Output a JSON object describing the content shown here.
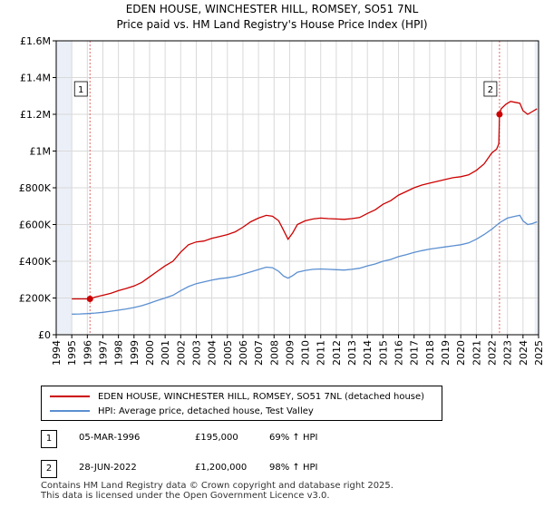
{
  "title_line1": "EDEN HOUSE, WINCHESTER HILL, ROMSEY, SO51 7NL",
  "title_line2": "Price paid vs. HM Land Registry's House Price Index (HPI)",
  "colors": {
    "property": "#cc0000",
    "hpi": "#5b8fd1",
    "sale_marker": "#cc0000",
    "vline": "#e06666",
    "shade": "#ebf0f8",
    "grid": "#d9d9d9"
  },
  "chart_data": {
    "type": "line",
    "xlabel": "",
    "ylabel": "",
    "xlim": [
      1994.0,
      2025.0
    ],
    "ylim": [
      0,
      1600000
    ],
    "grid": true,
    "x_ticks": [
      "1994",
      "1995",
      "1996",
      "1997",
      "1998",
      "1999",
      "2000",
      "2001",
      "2002",
      "2003",
      "2004",
      "2005",
      "2006",
      "2007",
      "2008",
      "2009",
      "2010",
      "2011",
      "2012",
      "2013",
      "2014",
      "2015",
      "2016",
      "2017",
      "2018",
      "2019",
      "2020",
      "2021",
      "2022",
      "2023",
      "2024",
      "2025"
    ],
    "y_ticks": [
      {
        "value": 0,
        "label": "£0"
      },
      {
        "value": 200000,
        "label": "£200K"
      },
      {
        "value": 400000,
        "label": "£400K"
      },
      {
        "value": 600000,
        "label": "£600K"
      },
      {
        "value": 800000,
        "label": "£800K"
      },
      {
        "value": 1000000,
        "label": "£1M"
      },
      {
        "value": 1200000,
        "label": "£1.2M"
      },
      {
        "value": 1400000,
        "label": "£1.4M"
      },
      {
        "value": 1600000,
        "label": "£1.6M"
      }
    ],
    "shaded_ranges": [
      [
        1994.0,
        1995.0
      ],
      [
        2024.75,
        2025.0
      ]
    ],
    "series": [
      {
        "name": "EDEN HOUSE, WINCHESTER HILL, ROMSEY, SO51 7NL (detached house)",
        "color": "#cc0000",
        "x": [
          1995.0,
          1995.5,
          1996.17,
          1996.5,
          1997.0,
          1997.5,
          1998.0,
          1998.5,
          1999.0,
          1999.5,
          2000.0,
          2000.5,
          2001.0,
          2001.5,
          2002.0,
          2002.5,
          2003.0,
          2003.5,
          2004.0,
          2004.5,
          2005.0,
          2005.5,
          2006.0,
          2006.5,
          2007.0,
          2007.5,
          2007.9,
          2008.3,
          2008.6,
          2008.9,
          2009.2,
          2009.5,
          2010.0,
          2010.5,
          2011.0,
          2011.5,
          2012.0,
          2012.5,
          2013.0,
          2013.5,
          2014.0,
          2014.5,
          2015.0,
          2015.5,
          2016.0,
          2016.5,
          2017.0,
          2017.5,
          2018.0,
          2018.5,
          2019.0,
          2019.5,
          2020.0,
          2020.5,
          2021.0,
          2021.5,
          2022.0,
          2022.3,
          2022.45,
          2022.49,
          2022.6,
          2022.9,
          2023.2,
          2023.5,
          2023.8,
          2024.0,
          2024.3,
          2024.6,
          2024.9
        ],
        "values": [
          195000,
          195000,
          195000,
          205000,
          215000,
          225000,
          240000,
          252000,
          265000,
          285000,
          315000,
          345000,
          375000,
          400000,
          450000,
          490000,
          505000,
          510000,
          525000,
          535000,
          545000,
          560000,
          585000,
          615000,
          635000,
          650000,
          645000,
          620000,
          570000,
          520000,
          555000,
          600000,
          620000,
          630000,
          635000,
          632000,
          630000,
          628000,
          632000,
          638000,
          660000,
          680000,
          710000,
          730000,
          760000,
          780000,
          800000,
          815000,
          825000,
          835000,
          845000,
          855000,
          860000,
          870000,
          895000,
          930000,
          990000,
          1010000,
          1040000,
          1200000,
          1230000,
          1255000,
          1270000,
          1265000,
          1260000,
          1220000,
          1200000,
          1215000,
          1230000
        ]
      },
      {
        "name": "HPI: Average price, detached house, Test Valley",
        "color": "#5b8fd1",
        "x": [
          1995.0,
          1995.5,
          1996.0,
          1996.5,
          1997.0,
          1997.5,
          1998.0,
          1998.5,
          1999.0,
          1999.5,
          2000.0,
          2000.5,
          2001.0,
          2001.5,
          2002.0,
          2002.5,
          2003.0,
          2003.5,
          2004.0,
          2004.5,
          2005.0,
          2005.5,
          2006.0,
          2006.5,
          2007.0,
          2007.5,
          2007.9,
          2008.3,
          2008.6,
          2008.9,
          2009.2,
          2009.5,
          2010.0,
          2010.5,
          2011.0,
          2011.5,
          2012.0,
          2012.5,
          2013.0,
          2013.5,
          2014.0,
          2014.5,
          2015.0,
          2015.5,
          2016.0,
          2016.5,
          2017.0,
          2017.5,
          2018.0,
          2018.5,
          2019.0,
          2019.5,
          2020.0,
          2020.5,
          2021.0,
          2021.5,
          2022.0,
          2022.5,
          2023.0,
          2023.5,
          2023.8,
          2024.0,
          2024.3,
          2024.6,
          2024.9
        ],
        "values": [
          112000,
          113000,
          115000,
          118000,
          122000,
          128000,
          134000,
          140000,
          148000,
          158000,
          172000,
          186000,
          200000,
          215000,
          240000,
          262000,
          278000,
          288000,
          298000,
          305000,
          310000,
          318000,
          330000,
          342000,
          355000,
          368000,
          365000,
          345000,
          320000,
          308000,
          322000,
          340000,
          350000,
          356000,
          358000,
          356000,
          354000,
          352000,
          356000,
          362000,
          375000,
          385000,
          400000,
          410000,
          425000,
          436000,
          448000,
          458000,
          466000,
          472000,
          478000,
          484000,
          490000,
          500000,
          520000,
          545000,
          575000,
          610000,
          635000,
          645000,
          650000,
          620000,
          600000,
          605000,
          615000
        ]
      }
    ],
    "sales": [
      {
        "label": "1",
        "x": 1996.17,
        "value": 195000
      },
      {
        "label": "2",
        "x": 2022.49,
        "value": 1200000
      }
    ]
  },
  "legend": {
    "property_label": "EDEN HOUSE, WINCHESTER HILL, ROMSEY, SO51 7NL (detached house)",
    "hpi_label": "HPI: Average price, detached house, Test Valley"
  },
  "sales_table": [
    {
      "label": "1",
      "date": "05-MAR-1996",
      "price": "£195,000",
      "hpi": "69% ↑ HPI"
    },
    {
      "label": "2",
      "date": "28-JUN-2022",
      "price": "£1,200,000",
      "hpi": "98% ↑ HPI"
    }
  ],
  "footer": {
    "line1": "Contains HM Land Registry data © Crown copyright and database right 2025.",
    "line2": "This data is licensed under the Open Government Licence v3.0."
  }
}
